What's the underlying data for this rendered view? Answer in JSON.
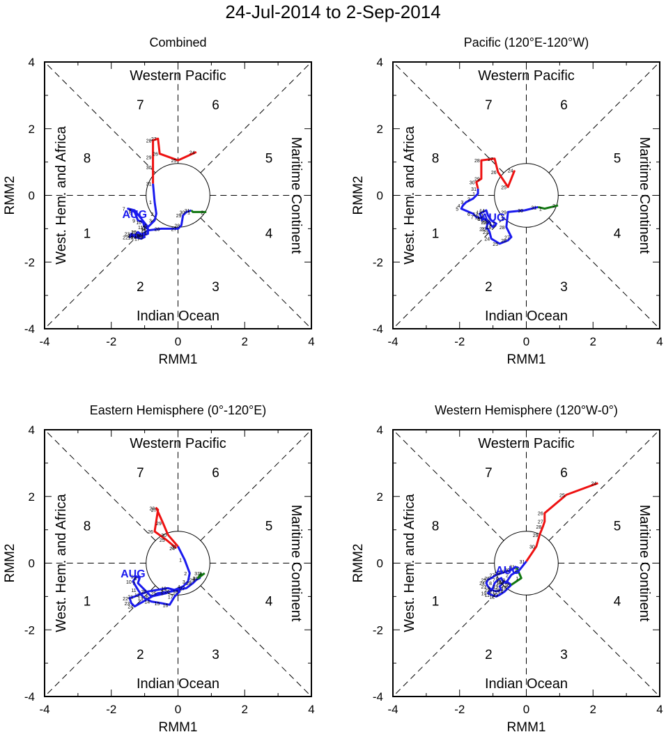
{
  "title": "24-Jul-2014 to 2-Sep-2014",
  "colors": {
    "jul": "#ee1111",
    "aug": "#1a1aee",
    "sep": "#117711",
    "axis": "#000000",
    "month_label": "#1a1aee"
  },
  "chart_data": [
    {
      "type": "line",
      "title": "Combined",
      "xlabel": "RMM1",
      "ylabel": "RMM2",
      "xlim": [
        -4,
        4
      ],
      "ylim": [
        -4,
        4
      ],
      "xticks": [
        "-4",
        "-2",
        "0",
        "2",
        "4"
      ],
      "yticks": [
        "-4",
        "-2",
        "0",
        "2",
        "4"
      ],
      "phases": [
        "1",
        "2",
        "3",
        "4",
        "5",
        "6",
        "7",
        "8"
      ],
      "regions": {
        "top": "Western Pacific",
        "bottom": "Indian Ocean",
        "left": "West. Hem. and Africa",
        "right": "Maritime Continent"
      },
      "month_label": {
        "text": "AUG",
        "x": -1.3,
        "y": -0.55
      },
      "series": [
        {
          "name": "Jul",
          "color": "#ee1111",
          "days": [
            "24",
            "25",
            "26",
            "27",
            "28",
            "29",
            "30",
            "31"
          ],
          "x": [
            0.55,
            0.0,
            -0.55,
            -0.6,
            -0.75,
            -0.75,
            -0.75,
            -0.75
          ],
          "y": [
            1.3,
            1.05,
            1.25,
            1.7,
            1.65,
            1.15,
            0.85,
            0.35
          ]
        },
        {
          "name": "Aug",
          "color": "#1a1aee",
          "days": [
            "1",
            "2",
            "3",
            "4",
            "5",
            "6",
            "7",
            "8",
            "9",
            "10",
            "11",
            "12",
            "13",
            "14",
            "15",
            "16",
            "17",
            "18",
            "19",
            "20",
            "21",
            "22",
            "23",
            "24",
            "25",
            "26",
            "27",
            "28",
            "29",
            "30",
            "31"
          ],
          "x": [
            -0.7,
            -0.65,
            -0.7,
            -0.85,
            -0.9,
            -1.3,
            -1.5,
            -1.3,
            -1.2,
            -1.05,
            -1.0,
            -0.9,
            -0.9,
            -1.05,
            -1.2,
            -1.3,
            -1.1,
            -1.0,
            -1.1,
            -1.2,
            -1.3,
            -1.45,
            -1.4,
            -1.2,
            -0.9,
            -0.5,
            0.0,
            0.1,
            0.15,
            0.25,
            0.4
          ],
          "y": [
            -0.2,
            -0.55,
            -0.75,
            -0.9,
            -0.95,
            -0.45,
            -0.4,
            -0.5,
            -0.75,
            -0.8,
            -0.95,
            -1.0,
            -1.15,
            -1.2,
            -1.1,
            -1.25,
            -1.3,
            -1.25,
            -1.2,
            -1.1,
            -1.2,
            -1.25,
            -1.15,
            -1.25,
            -1.05,
            -1.0,
            -1.0,
            -0.9,
            -0.6,
            -0.5,
            -0.45
          ]
        },
        {
          "name": "Sep",
          "color": "#117711",
          "days": [
            "1",
            "2"
          ],
          "x": [
            0.45,
            0.85
          ],
          "y": [
            -0.5,
            -0.5
          ]
        }
      ]
    },
    {
      "type": "line",
      "title": "Pacific (120°E-120°W)",
      "xlabel": "RMM1",
      "ylabel": "RMM2",
      "xlim": [
        -4,
        4
      ],
      "ylim": [
        -4,
        4
      ],
      "xticks": [
        "-4",
        "-2",
        "0",
        "2",
        "4"
      ],
      "yticks": [
        "-4",
        "-2",
        "0",
        "2",
        "4"
      ],
      "phases": [
        "1",
        "2",
        "3",
        "4",
        "5",
        "6",
        "7",
        "8"
      ],
      "regions": {
        "top": "Western Pacific",
        "bottom": "Indian Ocean",
        "left": "West. Hem. and Africa",
        "right": "Maritime Continent"
      },
      "month_label": {
        "text": "AUG",
        "x": -1.0,
        "y": -0.65
      },
      "series": [
        {
          "name": "Jul",
          "color": "#ee1111",
          "days": [
            "24",
            "25",
            "26",
            "27",
            "28",
            "29",
            "30",
            "31"
          ],
          "x": [
            -0.35,
            -0.55,
            -0.85,
            -0.95,
            -1.35,
            -1.35,
            -1.5,
            -1.45
          ],
          "y": [
            0.75,
            0.25,
            0.7,
            1.1,
            1.05,
            0.5,
            0.4,
            0.2
          ]
        },
        {
          "name": "Aug",
          "color": "#1a1aee",
          "days": [
            "1",
            "2",
            "3",
            "4",
            "5",
            "6",
            "7",
            "8",
            "9",
            "10",
            "11",
            "12",
            "13",
            "14",
            "15",
            "16",
            "17",
            "18",
            "19",
            "20",
            "21",
            "22",
            "23",
            "24",
            "25",
            "26",
            "27",
            "28",
            "29",
            "30",
            "31"
          ],
          "x": [
            -1.45,
            -1.6,
            -1.8,
            -1.9,
            -1.95,
            -1.6,
            -1.5,
            -1.3,
            -1.2,
            -1.1,
            -1.35,
            -1.4,
            -1.3,
            -1.2,
            -1.15,
            -1.05,
            -0.9,
            -1.0,
            -1.25,
            -1.15,
            -1.2,
            -1.15,
            -1.1,
            -1.05,
            -0.8,
            -0.55,
            -0.45,
            -0.6,
            -0.55,
            -0.05,
            0.35
          ],
          "y": [
            0.05,
            -0.1,
            -0.2,
            -0.3,
            -0.4,
            -0.55,
            -0.65,
            -0.7,
            -0.75,
            -0.8,
            -0.65,
            -0.55,
            -0.5,
            -0.45,
            -0.6,
            -0.75,
            -0.85,
            -0.95,
            -0.7,
            -0.8,
            -1.0,
            -1.0,
            -1.1,
            -1.3,
            -1.45,
            -1.35,
            -1.25,
            -0.95,
            -0.5,
            -0.45,
            -0.35
          ]
        },
        {
          "name": "Sep",
          "color": "#117711",
          "days": [
            "1",
            "2"
          ],
          "x": [
            0.55,
            0.95
          ],
          "y": [
            -0.4,
            -0.3
          ]
        }
      ]
    },
    {
      "type": "line",
      "title": "Eastern Hemisphere (0°-120°E)",
      "xlabel": "RMM1",
      "ylabel": "RMM2",
      "xlim": [
        -4,
        4
      ],
      "ylim": [
        -4,
        4
      ],
      "xticks": [
        "-4",
        "-2",
        "0",
        "2",
        "4"
      ],
      "yticks": [
        "-4",
        "-2",
        "0",
        "2",
        "4"
      ],
      "phases": [
        "1",
        "2",
        "3",
        "4",
        "5",
        "6",
        "7",
        "8"
      ],
      "regions": {
        "top": "Western Pacific",
        "bottom": "Indian Ocean",
        "left": "West. Hem. and Africa",
        "right": "Maritime Continent"
      },
      "month_label": {
        "text": "AUG",
        "x": -1.35,
        "y": -0.3
      },
      "series": [
        {
          "name": "Jul",
          "color": "#ee1111",
          "days": [
            "24",
            "25",
            "26",
            "27",
            "28",
            "29",
            "30",
            "31"
          ],
          "x": [
            -0.05,
            -0.35,
            -0.7,
            -0.6,
            -0.65,
            -0.45,
            -0.3,
            0.0
          ],
          "y": [
            0.45,
            0.7,
            0.95,
            1.6,
            1.65,
            1.2,
            0.85,
            0.5
          ]
        },
        {
          "name": "Aug",
          "color": "#1a1aee",
          "days": [
            "1",
            "2",
            "3",
            "4",
            "5",
            "6",
            "7",
            "8",
            "9",
            "10",
            "11",
            "12",
            "13",
            "14",
            "15",
            "16",
            "17",
            "18",
            "19",
            "20",
            "21",
            "22",
            "23",
            "24",
            "25",
            "26",
            "27",
            "28",
            "29",
            "30",
            "31"
          ],
          "x": [
            0.2,
            0.35,
            0.3,
            0.15,
            -0.35,
            -0.8,
            -1.2,
            -1.15,
            -1.25,
            -1.35,
            -1.2,
            -1.1,
            -1.0,
            -0.8,
            -0.5,
            -0.25,
            -0.1,
            0.05,
            -0.3,
            -0.9,
            -1.3,
            -1.45,
            -1.4,
            -1.3,
            -0.6,
            -0.2,
            0.25,
            0.45,
            0.55,
            0.65,
            0.7
          ],
          "y": [
            0.1,
            -0.3,
            -0.55,
            -0.7,
            -0.9,
            -1.0,
            -0.6,
            -0.45,
            -0.4,
            -0.55,
            -0.8,
            -0.95,
            -1.05,
            -1.15,
            -1.2,
            -1.25,
            -1.0,
            -0.85,
            -0.75,
            -0.85,
            -1.0,
            -1.05,
            -1.2,
            -1.3,
            -0.9,
            -0.85,
            -0.75,
            -0.6,
            -0.5,
            -0.45,
            -0.3
          ]
        },
        {
          "name": "Sep",
          "color": "#117711",
          "days": [
            "1",
            "2"
          ],
          "x": [
            0.6,
            0.8
          ],
          "y": [
            -0.45,
            -0.3
          ]
        }
      ]
    },
    {
      "type": "line",
      "title": "Western Hemisphere (120°W-0°)",
      "xlabel": "RMM1",
      "ylabel": "RMM2",
      "xlim": [
        -4,
        4
      ],
      "ylim": [
        -4,
        4
      ],
      "xticks": [
        "-4",
        "-2",
        "0",
        "2",
        "4"
      ],
      "yticks": [
        "-4",
        "-2",
        "0",
        "2",
        "4"
      ],
      "phases": [
        "1",
        "2",
        "3",
        "4",
        "5",
        "6",
        "7",
        "8"
      ],
      "regions": {
        "top": "Western Pacific",
        "bottom": "Indian Ocean",
        "left": "West. Hem. and Africa",
        "right": "Maritime Continent"
      },
      "month_label": {
        "text": "AUG",
        "x": -0.55,
        "y": -0.2
      },
      "series": [
        {
          "name": "Jul",
          "color": "#ee1111",
          "days": [
            "24",
            "25",
            "26",
            "27",
            "28",
            "29",
            "30",
            "31"
          ],
          "x": [
            2.15,
            1.2,
            0.55,
            0.55,
            0.5,
            0.4,
            0.3,
            0.0
          ],
          "y": [
            2.4,
            2.05,
            1.5,
            1.25,
            1.1,
            0.85,
            0.5,
            0.05
          ]
        },
        {
          "name": "Aug",
          "color": "#1a1aee",
          "days": [
            "1",
            "2",
            "3",
            "4",
            "5",
            "6",
            "7",
            "8",
            "9",
            "10",
            "11",
            "12",
            "13",
            "14",
            "15",
            "16",
            "17",
            "18",
            "19",
            "20",
            "21",
            "22",
            "23",
            "24",
            "25",
            "26",
            "27",
            "28",
            "29",
            "30",
            "31"
          ],
          "x": [
            -0.2,
            -0.45,
            -0.55,
            -0.6,
            -0.7,
            -0.75,
            -0.85,
            -0.95,
            -1.0,
            -1.15,
            -1.05,
            -0.9,
            -0.8,
            -0.65,
            -0.55,
            -0.45,
            -0.6,
            -0.7,
            -0.8,
            -0.75,
            -0.9,
            -1.05,
            -1.15,
            -1.2,
            -1.15,
            -1.05,
            -0.9,
            -0.75,
            -0.6,
            -0.45,
            -0.3
          ],
          "y": [
            -0.2,
            -0.35,
            -0.5,
            -0.6,
            -0.55,
            -0.45,
            -0.5,
            -0.6,
            -0.75,
            -0.9,
            -0.95,
            -1.0,
            -0.95,
            -0.85,
            -0.75,
            -0.65,
            -0.55,
            -0.6,
            -0.7,
            -0.8,
            -0.85,
            -0.8,
            -0.7,
            -0.6,
            -0.5,
            -0.45,
            -0.35,
            -0.3,
            -0.25,
            -0.2,
            -0.1
          ]
        },
        {
          "name": "Sep",
          "color": "#117711",
          "days": [
            "1",
            "2"
          ],
          "x": [
            -0.15,
            -0.45
          ],
          "y": [
            -0.45,
            -0.65
          ]
        }
      ]
    }
  ]
}
